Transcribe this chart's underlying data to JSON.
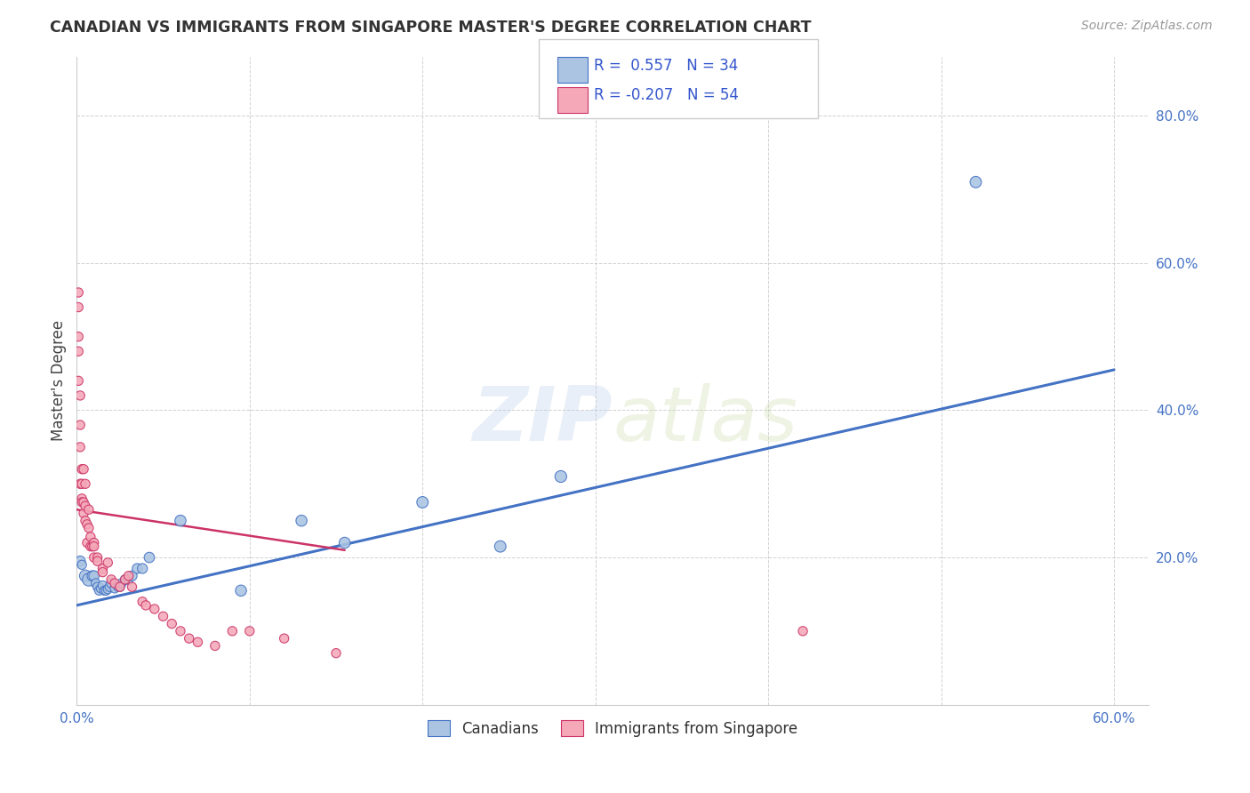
{
  "title": "CANADIAN VS IMMIGRANTS FROM SINGAPORE MASTER'S DEGREE CORRELATION CHART",
  "source": "Source: ZipAtlas.com",
  "ylabel": "Master's Degree",
  "xlim": [
    0.0,
    0.62
  ],
  "ylim": [
    0.0,
    0.88
  ],
  "xticks": [
    0.0,
    0.1,
    0.2,
    0.3,
    0.4,
    0.5,
    0.6
  ],
  "xtick_labels": [
    "0.0%",
    "",
    "",
    "",
    "",
    "",
    "60.0%"
  ],
  "yticks": [
    0.0,
    0.2,
    0.4,
    0.6,
    0.8
  ],
  "ytick_labels": [
    "",
    "20.0%",
    "40.0%",
    "60.0%",
    "80.0%"
  ],
  "canadian_color": "#aac4e2",
  "canadian_edge_color": "#4472c4",
  "singapore_color": "#f4a8b8",
  "singapore_edge_color": "#cc3366",
  "background_color": "#ffffff",
  "grid_color": "#cccccc",
  "watermark_zip": "ZIP",
  "watermark_atlas": "atlas",
  "legend_r_canadian": " 0.557",
  "legend_n_canadian": "34",
  "legend_r_singapore": "-0.207",
  "legend_n_singapore": "54",
  "canadian_trend_x": [
    0.0,
    0.6
  ],
  "canadian_trend_y": [
    0.135,
    0.455
  ],
  "singapore_trend_x": [
    0.0,
    0.155
  ],
  "singapore_trend_y": [
    0.265,
    0.21
  ],
  "canadian_scatter_x": [
    0.002,
    0.003,
    0.005,
    0.007,
    0.009,
    0.01,
    0.011,
    0.012,
    0.013,
    0.014,
    0.015,
    0.016,
    0.017,
    0.018,
    0.019,
    0.02,
    0.022,
    0.024,
    0.025,
    0.026,
    0.028,
    0.03,
    0.032,
    0.035,
    0.038,
    0.042,
    0.06,
    0.095,
    0.13,
    0.155,
    0.2,
    0.245,
    0.28,
    0.52
  ],
  "canadian_scatter_y": [
    0.195,
    0.19,
    0.175,
    0.17,
    0.175,
    0.175,
    0.165,
    0.16,
    0.155,
    0.158,
    0.162,
    0.155,
    0.155,
    0.157,
    0.16,
    0.165,
    0.158,
    0.16,
    0.16,
    0.165,
    0.17,
    0.17,
    0.175,
    0.185,
    0.185,
    0.2,
    0.25,
    0.155,
    0.25,
    0.22,
    0.275,
    0.215,
    0.31,
    0.71
  ],
  "canadian_scatter_size": [
    70,
    55,
    90,
    110,
    70,
    70,
    55,
    55,
    55,
    55,
    55,
    55,
    55,
    55,
    55,
    60,
    55,
    55,
    55,
    55,
    60,
    60,
    65,
    65,
    65,
    70,
    80,
    80,
    80,
    80,
    85,
    85,
    90,
    85
  ],
  "singapore_scatter_x": [
    0.001,
    0.001,
    0.001,
    0.001,
    0.001,
    0.002,
    0.002,
    0.002,
    0.002,
    0.003,
    0.003,
    0.003,
    0.003,
    0.004,
    0.004,
    0.004,
    0.005,
    0.005,
    0.005,
    0.006,
    0.006,
    0.007,
    0.007,
    0.008,
    0.008,
    0.009,
    0.01,
    0.01,
    0.01,
    0.012,
    0.012,
    0.015,
    0.015,
    0.018,
    0.02,
    0.022,
    0.025,
    0.028,
    0.03,
    0.032,
    0.038,
    0.04,
    0.045,
    0.05,
    0.055,
    0.06,
    0.065,
    0.07,
    0.08,
    0.09,
    0.1,
    0.12,
    0.15,
    0.42
  ],
  "singapore_scatter_y": [
    0.54,
    0.56,
    0.5,
    0.48,
    0.44,
    0.42,
    0.38,
    0.35,
    0.3,
    0.28,
    0.3,
    0.32,
    0.275,
    0.26,
    0.275,
    0.32,
    0.25,
    0.27,
    0.3,
    0.245,
    0.22,
    0.24,
    0.265,
    0.228,
    0.215,
    0.215,
    0.22,
    0.215,
    0.2,
    0.2,
    0.195,
    0.185,
    0.18,
    0.193,
    0.17,
    0.165,
    0.16,
    0.17,
    0.175,
    0.16,
    0.14,
    0.135,
    0.13,
    0.12,
    0.11,
    0.1,
    0.09,
    0.085,
    0.08,
    0.1,
    0.1,
    0.09,
    0.07,
    0.1
  ],
  "singapore_scatter_size": [
    55,
    55,
    55,
    55,
    55,
    55,
    55,
    55,
    55,
    55,
    55,
    55,
    55,
    55,
    55,
    55,
    55,
    55,
    55,
    55,
    55,
    55,
    55,
    55,
    55,
    55,
    55,
    55,
    55,
    55,
    55,
    55,
    55,
    55,
    55,
    55,
    55,
    55,
    55,
    55,
    55,
    55,
    55,
    55,
    55,
    55,
    55,
    55,
    55,
    55,
    55,
    55,
    55,
    55
  ]
}
